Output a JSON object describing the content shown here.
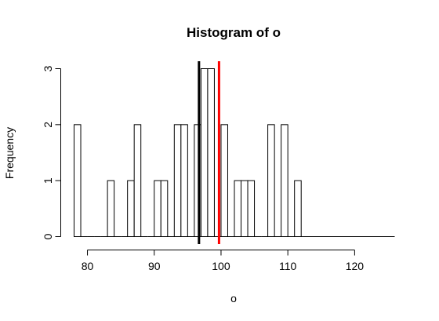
{
  "chart_data": {
    "type": "histogram",
    "title": "Histogram of o",
    "xlabel": "o",
    "ylabel": "Frequency",
    "xlim": [
      78,
      126
    ],
    "ylim": [
      0,
      3
    ],
    "xticks": [
      80,
      90,
      100,
      110,
      120
    ],
    "yticks": [
      0,
      1,
      2,
      3
    ],
    "bin_width": 1,
    "bins": [
      {
        "start": 78,
        "end": 79,
        "count": 2
      },
      {
        "start": 79,
        "end": 80,
        "count": 0
      },
      {
        "start": 80,
        "end": 81,
        "count": 0
      },
      {
        "start": 81,
        "end": 82,
        "count": 0
      },
      {
        "start": 82,
        "end": 83,
        "count": 0
      },
      {
        "start": 83,
        "end": 84,
        "count": 1
      },
      {
        "start": 84,
        "end": 85,
        "count": 0
      },
      {
        "start": 85,
        "end": 86,
        "count": 0
      },
      {
        "start": 86,
        "end": 87,
        "count": 1
      },
      {
        "start": 87,
        "end": 88,
        "count": 2
      },
      {
        "start": 88,
        "end": 89,
        "count": 0
      },
      {
        "start": 89,
        "end": 90,
        "count": 0
      },
      {
        "start": 90,
        "end": 91,
        "count": 1
      },
      {
        "start": 91,
        "end": 92,
        "count": 1
      },
      {
        "start": 92,
        "end": 93,
        "count": 0
      },
      {
        "start": 93,
        "end": 94,
        "count": 2
      },
      {
        "start": 94,
        "end": 95,
        "count": 2
      },
      {
        "start": 95,
        "end": 96,
        "count": 0
      },
      {
        "start": 96,
        "end": 97,
        "count": 2
      },
      {
        "start": 97,
        "end": 98,
        "count": 3
      },
      {
        "start": 98,
        "end": 99,
        "count": 3
      },
      {
        "start": 99,
        "end": 100,
        "count": 0
      },
      {
        "start": 100,
        "end": 101,
        "count": 2
      },
      {
        "start": 101,
        "end": 102,
        "count": 0
      },
      {
        "start": 102,
        "end": 103,
        "count": 1
      },
      {
        "start": 103,
        "end": 104,
        "count": 1
      },
      {
        "start": 104,
        "end": 105,
        "count": 1
      },
      {
        "start": 105,
        "end": 106,
        "count": 0
      },
      {
        "start": 106,
        "end": 107,
        "count": 0
      },
      {
        "start": 107,
        "end": 108,
        "count": 2
      },
      {
        "start": 108,
        "end": 109,
        "count": 0
      },
      {
        "start": 109,
        "end": 110,
        "count": 2
      },
      {
        "start": 110,
        "end": 111,
        "count": 0
      },
      {
        "start": 111,
        "end": 112,
        "count": 1
      },
      {
        "start": 112,
        "end": 126,
        "count": 0
      }
    ],
    "vertical_lines": [
      {
        "x": 96.7,
        "color": "#000000"
      },
      {
        "x": 99.7,
        "color": "#ff0000"
      }
    ]
  }
}
